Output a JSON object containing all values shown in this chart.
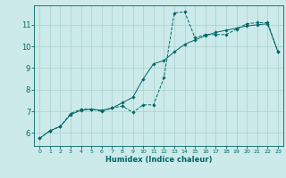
{
  "xlabel": "Humidex (Indice chaleur)",
  "ylabel": "",
  "bg_color": "#cceaea",
  "grid_color": "#aacece",
  "line_color": "#006666",
  "xlim": [
    -0.5,
    23.5
  ],
  "ylim": [
    5.4,
    11.9
  ],
  "yticks": [
    6,
    7,
    8,
    9,
    10,
    11
  ],
  "xticks": [
    0,
    1,
    2,
    3,
    4,
    5,
    6,
    7,
    8,
    9,
    10,
    11,
    12,
    13,
    14,
    15,
    16,
    17,
    18,
    19,
    20,
    21,
    22,
    23
  ],
  "series1_x": [
    0,
    1,
    2,
    3,
    4,
    5,
    6,
    7,
    8,
    9,
    10,
    11,
    12,
    13,
    14,
    15,
    16,
    17,
    18,
    19,
    20,
    21,
    22,
    23
  ],
  "series1_y": [
    5.75,
    6.1,
    6.3,
    6.9,
    7.1,
    7.1,
    7.0,
    7.15,
    7.25,
    6.95,
    7.3,
    7.3,
    8.55,
    11.55,
    11.6,
    10.4,
    10.55,
    10.55,
    10.55,
    10.8,
    11.05,
    11.1,
    11.1,
    9.75
  ],
  "series2_x": [
    0,
    1,
    2,
    3,
    4,
    5,
    6,
    7,
    8,
    9,
    10,
    11,
    12,
    13,
    14,
    15,
    16,
    17,
    18,
    19,
    20,
    21,
    22,
    23
  ],
  "series2_y": [
    5.75,
    6.1,
    6.3,
    6.85,
    7.05,
    7.1,
    7.05,
    7.15,
    7.4,
    7.65,
    8.5,
    9.2,
    9.35,
    9.75,
    10.1,
    10.3,
    10.5,
    10.65,
    10.75,
    10.85,
    10.95,
    11.0,
    11.05,
    9.75
  ]
}
